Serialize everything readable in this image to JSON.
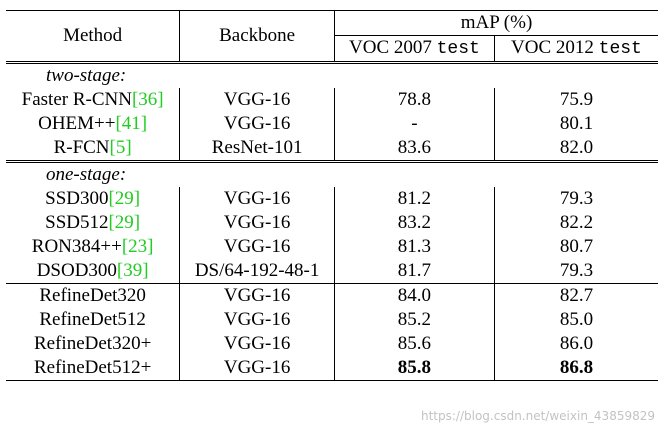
{
  "header": {
    "method": "Method",
    "backbone": "Backbone",
    "map": "mAP (%)",
    "voc2007_prefix": "VOC 2007",
    "voc2012_prefix": "VOC 2012",
    "test_suffix": "test"
  },
  "sections": {
    "two_stage": "two-stage:",
    "one_stage": "one-stage:"
  },
  "rows": {
    "r0": {
      "name": "Faster R-CNN",
      "ref": "[36]",
      "backbone": "VGG-16",
      "voc07": "78.8",
      "voc12": "75.9"
    },
    "r1": {
      "name": "OHEM++",
      "ref": "[41]",
      "backbone": "VGG-16",
      "voc07": "-",
      "voc12": "80.1"
    },
    "r2": {
      "name": "R-FCN",
      "ref": "[5]",
      "backbone": "ResNet-101",
      "voc07": "83.6",
      "voc12": "82.0"
    },
    "r3": {
      "name": "SSD300",
      "ref": "[29]",
      "backbone": "VGG-16",
      "voc07": "81.2",
      "voc12": "79.3"
    },
    "r4": {
      "name": "SSD512",
      "ref": "[29]",
      "backbone": "VGG-16",
      "voc07": "83.2",
      "voc12": "82.2"
    },
    "r5": {
      "name": "RON384++",
      "ref": "[23]",
      "backbone": "VGG-16",
      "voc07": "81.3",
      "voc12": "80.7"
    },
    "r6": {
      "name": "DSOD300",
      "ref": "[39]",
      "backbone": "DS/64-192-48-1",
      "voc07": "81.7",
      "voc12": "79.3"
    },
    "r7": {
      "name": "RefineDet320",
      "backbone": "VGG-16",
      "voc07": "84.0",
      "voc12": "82.7"
    },
    "r8": {
      "name": "RefineDet512",
      "backbone": "VGG-16",
      "voc07": "85.2",
      "voc12": "85.0"
    },
    "r9": {
      "name": "RefineDet320+",
      "backbone": "VGG-16",
      "voc07": "85.6",
      "voc12": "86.0"
    },
    "r10": {
      "name": "RefineDet512+",
      "backbone": "VGG-16",
      "voc07": "85.8",
      "voc12": "86.8"
    }
  },
  "watermark": "https://blog.csdn.net/weixin_43859829"
}
